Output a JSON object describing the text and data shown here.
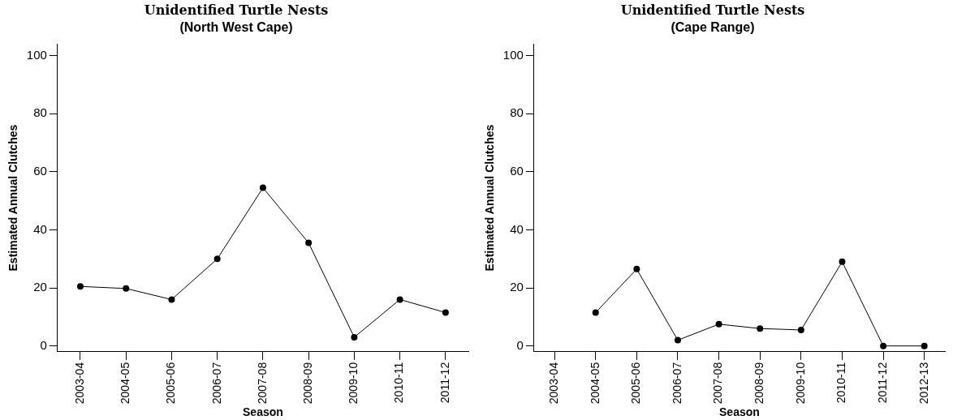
{
  "chart_data": [
    {
      "type": "line",
      "title": "Unidentified Turtle Nests",
      "subtitle": "(North West Cape)",
      "xlabel": "Season",
      "ylabel": "Estimated Annual Clutches",
      "categories": [
        "2003-04",
        "2004-05",
        "2005-06",
        "2006-07",
        "2007-08",
        "2008-09",
        "2009-10",
        "2010-11",
        "2011-12"
      ],
      "series": [
        {
          "color": "#000000",
          "values": [
            20.5,
            19.8,
            16,
            30,
            54.5,
            35.5,
            3,
            16,
            11.5
          ]
        }
      ],
      "ylim": [
        -2,
        104
      ],
      "yticks": [
        0,
        20,
        40,
        60,
        80,
        100
      ],
      "grid": false,
      "legend": false,
      "marker": "circle",
      "line_style": "solid"
    },
    {
      "type": "line",
      "title": "Unidentified Turtle Nests",
      "subtitle": "(Cape Range)",
      "xlabel": "Season",
      "ylabel": "Estimated Annual Clutches",
      "categories": [
        "2003-04",
        "2004-05",
        "2005-06",
        "2006-07",
        "2007-08",
        "2008-09",
        "2009-10",
        "2010-11",
        "2011-12",
        "2012-13"
      ],
      "series": [
        {
          "color": "#000000",
          "values": [
            null,
            11.5,
            26.5,
            2,
            7.5,
            6,
            5.5,
            29,
            0,
            0
          ]
        }
      ],
      "ylim": [
        -2,
        104
      ],
      "yticks": [
        0,
        20,
        40,
        60,
        80,
        100
      ],
      "grid": false,
      "legend": false,
      "marker": "circle",
      "line_style": "solid"
    }
  ]
}
